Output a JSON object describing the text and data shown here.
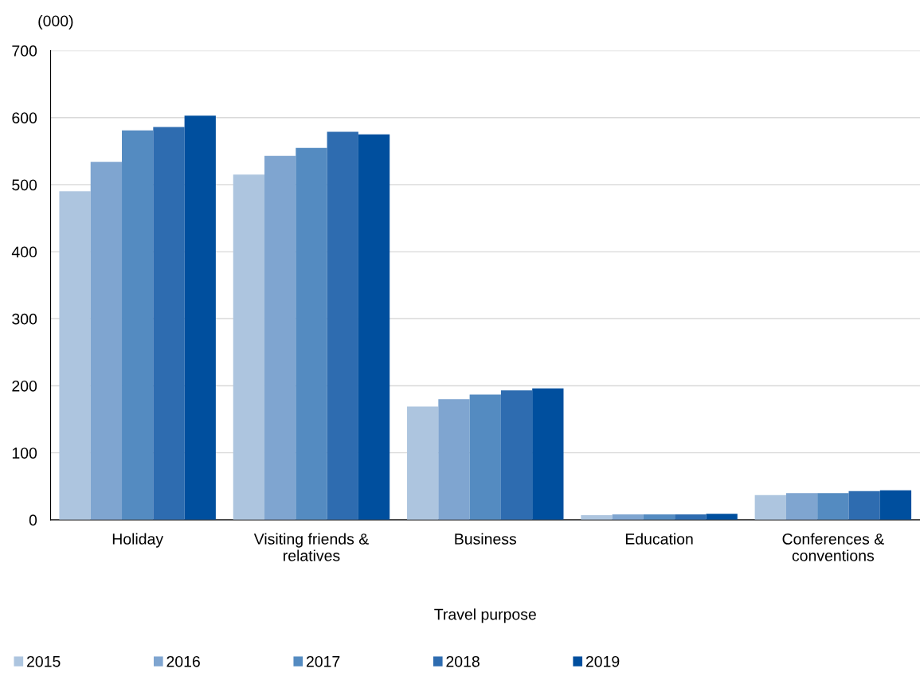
{
  "chart_data": {
    "type": "bar",
    "ylabel": "(000)",
    "xlabel": "Travel purpose",
    "categories": [
      "Holiday",
      "Visiting friends &\nrelatives",
      "Business",
      "Education",
      "Conferences &\nconventions"
    ],
    "series": [
      {
        "name": "2015",
        "color": "#adc5df",
        "values": [
          490,
          515,
          169,
          7,
          37
        ]
      },
      {
        "name": "2016",
        "color": "#7fa5d0",
        "values": [
          534,
          543,
          180,
          8,
          40
        ]
      },
      {
        "name": "2017",
        "color": "#548bc1",
        "values": [
          581,
          555,
          187,
          8,
          40
        ]
      },
      {
        "name": "2018",
        "color": "#2e6cb0",
        "values": [
          586,
          579,
          193,
          8,
          43
        ]
      },
      {
        "name": "2019",
        "color": "#004f9e",
        "values": [
          603,
          575,
          196,
          9,
          44
        ]
      }
    ],
    "ylim": [
      0,
      700
    ],
    "yticks": [
      0,
      100,
      200,
      300,
      400,
      500,
      600,
      700
    ],
    "grid": "y",
    "legend": "bottom left"
  }
}
